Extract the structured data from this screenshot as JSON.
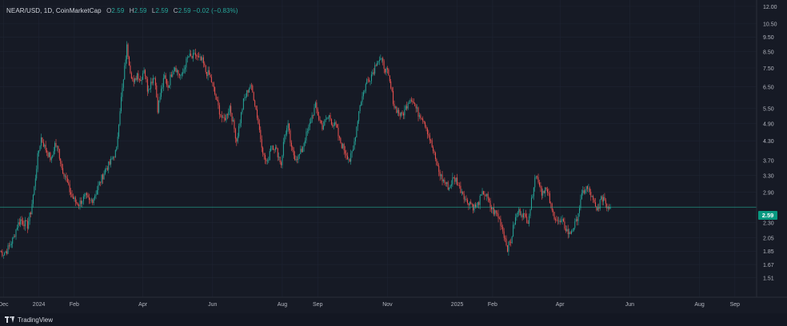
{
  "legend": {
    "symbol": "NEAR/USD, 1D, CoinMarketCap",
    "o_label": "O",
    "o": "2.59",
    "h_label": "H",
    "h": "2.59",
    "l_label": "L",
    "l": "2.59",
    "c_label": "C",
    "c": "2.59",
    "change": "−0.02 (−0.83%)"
  },
  "last_price": "2.59",
  "branding": "TradingView",
  "colors": {
    "up": "#26a69a",
    "down": "#ef5350",
    "grid": "#1f2433",
    "price_line": "#22ab94",
    "price_tag": "#089981",
    "axis_text": "#b2b5be"
  },
  "chart_data": {
    "type": "candlestick",
    "symbol": "NEAR/USD",
    "interval": "1D",
    "source": "CoinMarketCap",
    "y_scale": "log",
    "ylim": [
      1.4,
      12.0
    ],
    "y_ticks": [
      12.0,
      10.5,
      9.5,
      8.5,
      7.5,
      6.5,
      5.5,
      4.9,
      4.3,
      3.7,
      3.3,
      2.9,
      2.3,
      2.05,
      1.85,
      1.67,
      1.51
    ],
    "y_tick_labels": [
      "12.00",
      "10.50",
      "9.50",
      "8.50",
      "7.50",
      "6.50",
      "5.50",
      "4.90",
      "4.30",
      "3.70",
      "3.30",
      "2.90",
      "2.30",
      "2.05",
      "1.85",
      "1.67",
      "1.51"
    ],
    "x_range": [
      "2023-11-28",
      "2025-09-20"
    ],
    "x_ticks": [
      {
        "date": "2023-12-01",
        "label": "Dec"
      },
      {
        "date": "2024-01-01",
        "label": "2024"
      },
      {
        "date": "2024-02-01",
        "label": "Feb"
      },
      {
        "date": "2024-04-01",
        "label": "Apr"
      },
      {
        "date": "2024-06-01",
        "label": "Jun"
      },
      {
        "date": "2024-08-01",
        "label": "Aug"
      },
      {
        "date": "2024-09-01",
        "label": "Sep"
      },
      {
        "date": "2024-11-01",
        "label": "Nov"
      },
      {
        "date": "2025-01-01",
        "label": "2025"
      },
      {
        "date": "2025-02-01",
        "label": "Feb"
      },
      {
        "date": "2025-04-01",
        "label": "Apr"
      },
      {
        "date": "2025-06-01",
        "label": "Jun"
      },
      {
        "date": "2025-08-01",
        "label": "Aug"
      },
      {
        "date": "2025-09-01",
        "label": "Sep"
      }
    ],
    "last_price": 2.59,
    "close_path_start": "2023-11-28",
    "close_path_step_days": 3,
    "close_path": [
      1.85,
      1.82,
      1.86,
      1.95,
      2.05,
      2.25,
      2.35,
      2.3,
      2.25,
      2.5,
      3.0,
      3.8,
      4.4,
      4.1,
      3.9,
      3.7,
      4.2,
      4.0,
      3.5,
      3.3,
      3.0,
      2.8,
      2.7,
      2.65,
      2.75,
      2.8,
      2.7,
      2.75,
      2.9,
      3.1,
      3.3,
      3.5,
      3.6,
      3.8,
      4.0,
      5.5,
      6.8,
      8.8,
      7.4,
      6.6,
      7.2,
      6.8,
      7.5,
      6.4,
      6.7,
      7.1,
      5.5,
      6.3,
      7.0,
      6.5,
      7.2,
      7.6,
      7.2,
      7.0,
      7.7,
      8.2,
      8.1,
      8.3,
      8.0,
      7.9,
      7.3,
      7.1,
      6.6,
      5.9,
      5.4,
      5.0,
      5.2,
      5.6,
      4.9,
      4.3,
      5.0,
      5.8,
      6.2,
      6.6,
      6.0,
      5.2,
      4.4,
      3.8,
      3.6,
      4.2,
      4.1,
      3.9,
      3.6,
      4.5,
      4.8,
      4.0,
      3.8,
      3.8,
      4.0,
      4.4,
      4.7,
      5.2,
      5.6,
      5.1,
      4.8,
      5.0,
      5.2,
      4.9,
      4.8,
      4.3,
      4.1,
      3.9,
      3.7,
      4.0,
      4.8,
      5.7,
      6.2,
      6.8,
      7.0,
      7.4,
      8.0,
      8.0,
      7.6,
      7.2,
      6.4,
      5.6,
      5.4,
      5.2,
      5.4,
      5.8,
      6.0,
      5.6,
      5.3,
      5.2,
      4.9,
      4.5,
      4.1,
      3.7,
      3.4,
      3.2,
      3.1,
      3.0,
      3.2,
      3.2,
      3.0,
      2.9,
      2.7,
      2.7,
      2.6,
      2.6,
      2.75,
      2.9,
      2.8,
      2.6,
      2.5,
      2.45,
      2.3,
      2.1,
      1.9,
      2.0,
      2.3,
      2.5,
      2.5,
      2.4,
      2.35,
      2.7,
      3.3,
      3.2,
      2.9,
      3.0,
      2.8,
      2.5,
      2.4,
      2.3,
      2.3,
      2.2,
      2.1,
      2.2,
      2.3,
      2.6,
      2.9,
      3.0,
      2.9,
      2.7,
      2.5,
      2.7,
      2.8,
      2.62,
      2.59
    ]
  }
}
